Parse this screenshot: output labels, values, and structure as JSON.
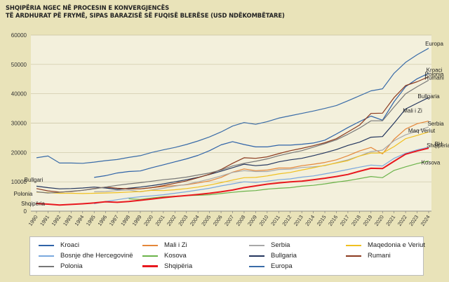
{
  "title_line1": "SHQIPËRIA NGEC NË PROCESIN E KONVERGJENCËS",
  "title_line2": "TË ARDHURAT PË FRYMË, SIPAS BARAZISË SË FUQISË BLERËSE (USD NDËKOMBËTARE)",
  "chart_data": {
    "type": "line",
    "x": [
      1990,
      1991,
      1992,
      1993,
      1994,
      1995,
      1996,
      1997,
      1998,
      1999,
      2000,
      2001,
      2002,
      2003,
      2004,
      2005,
      2006,
      2007,
      2008,
      2009,
      2010,
      2011,
      2012,
      2013,
      2014,
      2015,
      2016,
      2017,
      2018,
      2019,
      2020,
      2021,
      2022,
      2023,
      2024
    ],
    "ylim": [
      0,
      60000
    ],
    "yticks": [
      0,
      10000,
      20000,
      30000,
      40000,
      50000,
      60000
    ],
    "grid": true,
    "legend": "bottom",
    "series": [
      {
        "name": "Kroaci",
        "label": "Kroaci",
        "color": "#2f63a8",
        "start": 1995,
        "values": [
          null,
          null,
          null,
          null,
          null,
          11500,
          12100,
          13000,
          13500,
          13700,
          14800,
          15800,
          16800,
          17800,
          19000,
          20600,
          22600,
          23700,
          22700,
          21900,
          21900,
          22500,
          22500,
          22800,
          23200,
          24200,
          26300,
          28500,
          30500,
          32400,
          31000,
          37300,
          42400,
          45100,
          47000
        ]
      },
      {
        "name": "Mali i Zi",
        "label": "Mali i Zi",
        "color": "#e5873a",
        "start": 1997,
        "values": [
          null,
          null,
          null,
          null,
          null,
          null,
          null,
          7400,
          7800,
          7600,
          8000,
          8400,
          8700,
          9000,
          9600,
          10300,
          11500,
          13300,
          14400,
          13800,
          14000,
          14700,
          14700,
          15500,
          16000,
          16600,
          17500,
          18900,
          20500,
          21700,
          19500,
          24500,
          28000,
          29800,
          30700
        ]
      },
      {
        "name": "Serbia",
        "label": "Serbia",
        "color": "#a8a8a8",
        "start": 1995,
        "values": [
          null,
          null,
          null,
          null,
          null,
          6600,
          6700,
          7000,
          7200,
          6600,
          7200,
          7800,
          8500,
          9100,
          10000,
          10900,
          12000,
          13200,
          13800,
          13500,
          13500,
          14200,
          14300,
          14900,
          15100,
          15500,
          16500,
          17500,
          18800,
          20300,
          20800,
          24000,
          26000,
          27300,
          28700
        ]
      },
      {
        "name": "Maqedonia e Veriut",
        "label": "Maq Veriut",
        "color": "#f0c020",
        "start": 1990,
        "values": [
          6500,
          6300,
          6100,
          6100,
          6000,
          6100,
          6200,
          6300,
          6500,
          6700,
          7100,
          7000,
          7300,
          7700,
          8200,
          8900,
          9700,
          10600,
          11400,
          11500,
          12000,
          12700,
          13200,
          14000,
          14800,
          15600,
          16400,
          17200,
          18800,
          19800,
          19800,
          22000,
          24700,
          25800,
          27000
        ]
      },
      {
        "name": "Bosnje dhe Hercegovinë",
        "label": "BH",
        "color": "#7aa8de",
        "start": 1995,
        "values": [
          null,
          null,
          null,
          null,
          null,
          2500,
          3300,
          3900,
          4500,
          4900,
          5200,
          5600,
          6100,
          6600,
          7200,
          7800,
          8600,
          9300,
          10000,
          9800,
          10200,
          10700,
          11000,
          11600,
          12000,
          12700,
          13400,
          14200,
          15000,
          15700,
          15400,
          18000,
          19700,
          20900,
          21800
        ]
      },
      {
        "name": "Kosova",
        "label": "Kosova",
        "color": "#6bb34a",
        "start": 1998,
        "values": [
          null,
          null,
          null,
          null,
          null,
          null,
          null,
          null,
          4200,
          4000,
          4500,
          4900,
          5100,
          5300,
          5400,
          5600,
          6000,
          6400,
          6800,
          7000,
          7500,
          7800,
          8000,
          8500,
          8800,
          9300,
          9900,
          10400,
          11100,
          11800,
          11400,
          13900,
          15100,
          16200,
          17100
        ]
      },
      {
        "name": "Bullgaria",
        "label": "Bullgaria",
        "color": "#24365e",
        "start": 1990,
        "values": [
          8500,
          8000,
          7600,
          7700,
          7900,
          8200,
          7900,
          7400,
          7800,
          8200,
          8700,
          9300,
          10000,
          10700,
          11500,
          12500,
          13600,
          14800,
          16000,
          15500,
          15800,
          16800,
          17500,
          18000,
          18900,
          19900,
          21000,
          22400,
          23500,
          25200,
          25400,
          30000,
          34800,
          36800,
          38700
        ]
      },
      {
        "name": "Rumani",
        "label": "Rumani",
        "color": "#8b3a1f",
        "start": 1990,
        "values": [
          7700,
          6900,
          6500,
          6700,
          7100,
          7700,
          8200,
          7800,
          7600,
          7600,
          8000,
          8700,
          9500,
          10300,
          11400,
          12600,
          14200,
          16300,
          18200,
          18000,
          18500,
          19600,
          20600,
          21400,
          22300,
          23300,
          24700,
          27000,
          29300,
          33300,
          33400,
          38700,
          42800,
          44100,
          45800
        ]
      },
      {
        "name": "Polonia",
        "label": "Polonia",
        "color": "#777777",
        "start": 1990,
        "values": [
          6600,
          6200,
          6400,
          6800,
          7100,
          7600,
          8200,
          8800,
          9300,
          9700,
          10200,
          10700,
          11100,
          11600,
          12300,
          13000,
          14000,
          15400,
          16300,
          17000,
          17800,
          18900,
          19800,
          20600,
          21800,
          23000,
          24300,
          26200,
          28300,
          30800,
          30800,
          35500,
          40000,
          42400,
          44600
        ]
      },
      {
        "name": "Shqipëria",
        "label": "Shqipëria",
        "color": "#e8181e",
        "start": 1990,
        "values": [
          2600,
          2400,
          2100,
          2300,
          2500,
          2800,
          3200,
          3000,
          3300,
          3700,
          4100,
          4600,
          5000,
          5300,
          5700,
          6100,
          6600,
          7200,
          8000,
          8600,
          9200,
          9600,
          10000,
          10200,
          10700,
          11200,
          11800,
          12500,
          13600,
          14600,
          14500,
          17000,
          19400,
          20500,
          21500
        ]
      },
      {
        "name": "Europa",
        "label": "Europa",
        "color": "#3a6ca8",
        "start": 1990,
        "values": [
          18200,
          18800,
          16400,
          16400,
          16300,
          16700,
          17200,
          17600,
          18300,
          18900,
          20000,
          20900,
          21700,
          22700,
          23900,
          25300,
          27000,
          29000,
          30200,
          29600,
          30500,
          31700,
          32500,
          33300,
          34100,
          35000,
          36000,
          37600,
          39300,
          41000,
          41700,
          47000,
          50700,
          53300,
          55500
        ]
      }
    ],
    "legend_order": [
      "Kroaci",
      "Mali i Zi",
      "Serbia",
      "Maqedonia e Veriut",
      "Bosnje dhe Hercegovinë",
      "Kosova",
      "Bullgaria",
      "Rumani",
      "Polonia",
      "Shqipëria",
      "Europa"
    ],
    "start_labels": {
      "Bullgari": "Bullgari",
      "Polonia": "Polonia",
      "Shqipëria": "Shqipëria"
    }
  }
}
